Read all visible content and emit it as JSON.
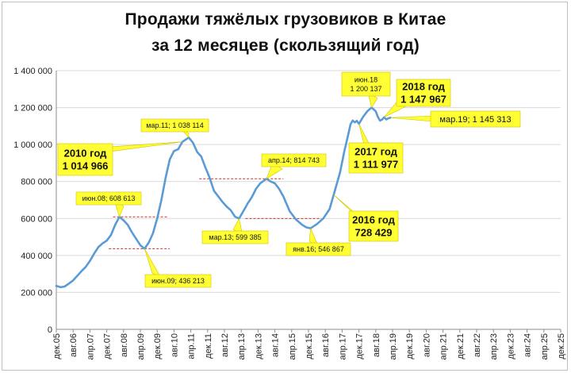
{
  "chart_data": {
    "type": "line",
    "title_line1": "Продажи тяжёлых грузовиков в Китае",
    "title_line2": "за 12 месяцев (скользящий год)",
    "ylim": [
      0,
      1400000
    ],
    "yticks": [
      {
        "v": 0,
        "label": "0"
      },
      {
        "v": 200000,
        "label": "200 000"
      },
      {
        "v": 400000,
        "label": "400 000"
      },
      {
        "v": 600000,
        "label": "600 000"
      },
      {
        "v": 800000,
        "label": "800 000"
      },
      {
        "v": 1000000,
        "label": "1 000 000"
      },
      {
        "v": 1200000,
        "label": "1 200 000"
      },
      {
        "v": 1400000,
        "label": "1 400 000"
      }
    ],
    "x_range": [
      "2005-12",
      "2025-12"
    ],
    "xticks": [
      {
        "m": "2005-12",
        "label": "дек.05"
      },
      {
        "m": "2006-08",
        "label": "авг.06"
      },
      {
        "m": "2007-04",
        "label": "апр.07"
      },
      {
        "m": "2007-12",
        "label": "дек.07"
      },
      {
        "m": "2008-08",
        "label": "авг.08"
      },
      {
        "m": "2009-04",
        "label": "апр.09"
      },
      {
        "m": "2009-12",
        "label": "дек.09"
      },
      {
        "m": "2010-08",
        "label": "авг.10"
      },
      {
        "m": "2011-04",
        "label": "апр.11"
      },
      {
        "m": "2011-12",
        "label": "дек.11"
      },
      {
        "m": "2012-08",
        "label": "авг.12"
      },
      {
        "m": "2013-04",
        "label": "апр.13"
      },
      {
        "m": "2013-12",
        "label": "дек.13"
      },
      {
        "m": "2014-08",
        "label": "авг.14"
      },
      {
        "m": "2015-04",
        "label": "апр.15"
      },
      {
        "m": "2015-12",
        "label": "дек.15"
      },
      {
        "m": "2016-08",
        "label": "авг.16"
      },
      {
        "m": "2017-04",
        "label": "апр.17"
      },
      {
        "m": "2017-12",
        "label": "дек.17"
      },
      {
        "m": "2018-08",
        "label": "авг.18"
      },
      {
        "m": "2019-04",
        "label": "апр.19"
      },
      {
        "m": "2019-12",
        "label": "дек.19"
      },
      {
        "m": "2020-08",
        "label": "авг.20"
      },
      {
        "m": "2021-04",
        "label": "апр.21"
      },
      {
        "m": "2021-12",
        "label": "дек.21"
      },
      {
        "m": "2022-08",
        "label": "авг.22"
      },
      {
        "m": "2023-04",
        "label": "апр.23"
      },
      {
        "m": "2023-12",
        "label": "дек.23"
      },
      {
        "m": "2024-08",
        "label": "авг.24"
      },
      {
        "m": "2025-04",
        "label": "апр.25"
      },
      {
        "m": "2025-12",
        "label": "дек.25"
      }
    ],
    "series": [
      {
        "color": "#5b9bd5",
        "points": [
          [
            "2005-12",
            235000
          ],
          [
            "2006-02",
            228000
          ],
          [
            "2006-04",
            232000
          ],
          [
            "2006-06",
            248000
          ],
          [
            "2006-08",
            265000
          ],
          [
            "2006-10",
            290000
          ],
          [
            "2006-12",
            315000
          ],
          [
            "2007-02",
            338000
          ],
          [
            "2007-04",
            370000
          ],
          [
            "2007-06",
            410000
          ],
          [
            "2007-08",
            445000
          ],
          [
            "2007-10",
            465000
          ],
          [
            "2007-12",
            480000
          ],
          [
            "2008-02",
            510000
          ],
          [
            "2008-04",
            565000
          ],
          [
            "2008-06",
            608613
          ],
          [
            "2008-08",
            590000
          ],
          [
            "2008-10",
            565000
          ],
          [
            "2008-12",
            525000
          ],
          [
            "2009-02",
            490000
          ],
          [
            "2009-04",
            455000
          ],
          [
            "2009-06",
            436213
          ],
          [
            "2009-08",
            470000
          ],
          [
            "2009-10",
            520000
          ],
          [
            "2009-12",
            600000
          ],
          [
            "2010-02",
            700000
          ],
          [
            "2010-04",
            820000
          ],
          [
            "2010-06",
            920000
          ],
          [
            "2010-08",
            965000
          ],
          [
            "2010-10",
            975000
          ],
          [
            "2010-12",
            1014966
          ],
          [
            "2011-03",
            1038114
          ],
          [
            "2011-05",
            1010000
          ],
          [
            "2011-07",
            960000
          ],
          [
            "2011-09",
            935000
          ],
          [
            "2011-11",
            875000
          ],
          [
            "2012-01",
            820000
          ],
          [
            "2012-03",
            750000
          ],
          [
            "2012-05",
            720000
          ],
          [
            "2012-07",
            690000
          ],
          [
            "2012-09",
            665000
          ],
          [
            "2012-11",
            645000
          ],
          [
            "2013-01",
            610000
          ],
          [
            "2013-03",
            599385
          ],
          [
            "2013-05",
            640000
          ],
          [
            "2013-07",
            680000
          ],
          [
            "2013-09",
            715000
          ],
          [
            "2013-11",
            760000
          ],
          [
            "2014-01",
            790000
          ],
          [
            "2014-04",
            814743
          ],
          [
            "2014-06",
            800000
          ],
          [
            "2014-08",
            790000
          ],
          [
            "2014-10",
            760000
          ],
          [
            "2014-12",
            720000
          ],
          [
            "2015-03",
            640000
          ],
          [
            "2015-06",
            595000
          ],
          [
            "2015-09",
            565000
          ],
          [
            "2015-11",
            552000
          ],
          [
            "2016-01",
            546867
          ],
          [
            "2016-04",
            570000
          ],
          [
            "2016-07",
            600000
          ],
          [
            "2016-10",
            650000
          ],
          [
            "2016-12",
            728429
          ],
          [
            "2017-03",
            850000
          ],
          [
            "2017-05",
            960000
          ],
          [
            "2017-07",
            1060000
          ],
          [
            "2017-08",
            1110000
          ],
          [
            "2017-09",
            1130000
          ],
          [
            "2017-10",
            1120000
          ],
          [
            "2017-11",
            1128000
          ],
          [
            "2017-12",
            1111977
          ],
          [
            "2018-02",
            1150000
          ],
          [
            "2018-04",
            1180000
          ],
          [
            "2018-06",
            1200137
          ],
          [
            "2018-08",
            1180000
          ],
          [
            "2018-09",
            1150000
          ],
          [
            "2018-10",
            1130000
          ],
          [
            "2018-11",
            1135000
          ],
          [
            "2018-12",
            1147967
          ],
          [
            "2019-01",
            1136000
          ],
          [
            "2019-02",
            1142000
          ],
          [
            "2019-03",
            1145313
          ]
        ]
      }
    ],
    "callouts": [
      {
        "id": "c-2010",
        "l1": "2010 год",
        "l2": "1 014 966",
        "point": [
          "2010-12",
          1014966
        ]
      },
      {
        "id": "c-2016",
        "l1": "2016 год",
        "l2": "728 429",
        "point": [
          "2016-12",
          728429
        ]
      },
      {
        "id": "c-2017",
        "l1": "2017 год",
        "l2": "1 111 977",
        "point": [
          "2017-12",
          1111977
        ]
      },
      {
        "id": "c-2018",
        "l1": "2018 год",
        "l2": "1 147 967",
        "point": [
          "2018-12",
          1147967
        ]
      },
      {
        "id": "c-jun08",
        "l1": "июн.08; 608 613",
        "point": [
          "2008-06",
          608613
        ]
      },
      {
        "id": "c-mar11",
        "l1": "мар.11; 1 038 114",
        "point": [
          "2011-03",
          1038114
        ]
      },
      {
        "id": "c-apr14",
        "l1": "апр.14; 814 743",
        "point": [
          "2014-04",
          814743
        ]
      },
      {
        "id": "c-jun09",
        "l1": "июн.09; 436 213",
        "point": [
          "2009-06",
          436213
        ]
      },
      {
        "id": "c-mar13",
        "l1": "мар.13; 599 385",
        "point": [
          "2013-03",
          599385
        ]
      },
      {
        "id": "c-jan16",
        "l1": "янв.16; 546 867",
        "point": [
          "2016-01",
          546867
        ]
      },
      {
        "id": "c-mar19",
        "l1": "мар.19; 1 145 313",
        "point": [
          "2019-03",
          1145313
        ]
      },
      {
        "id": "c-jun18",
        "l1": "июн.18",
        "l2": "1 200 137",
        "point": [
          "2018-06",
          1200137
        ]
      }
    ],
    "reference_lines": [
      {
        "value": 608613,
        "from": "2008-03",
        "to": "2010-05"
      },
      {
        "value": 436213,
        "from": "2008-01",
        "to": "2010-06"
      },
      {
        "value": 814743,
        "from": "2011-08",
        "to": "2014-12"
      },
      {
        "value": 599385,
        "from": "2013-06",
        "to": "2016-06"
      }
    ]
  }
}
